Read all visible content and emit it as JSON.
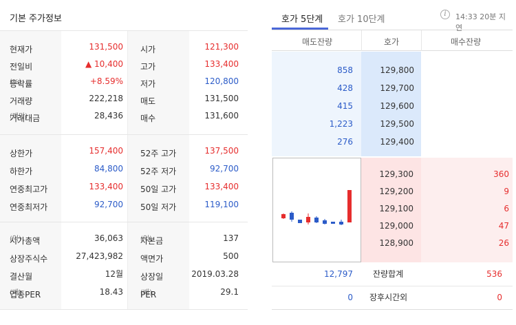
{
  "left": {
    "title": "기본 주가정보",
    "block1": [
      {
        "l1": "현재가",
        "u1": "",
        "v1": "131,500",
        "c1": "red",
        "l2": "시가",
        "u2": "",
        "v2": "121,300",
        "c2": "red"
      },
      {
        "l1": "전일비",
        "u1": "",
        "v1": "▲ 10,400",
        "c1": "red",
        "l2": "고가",
        "u2": "",
        "v2": "133,400",
        "c2": "red"
      },
      {
        "l1": "등락률",
        "u1": "(%)",
        "v1": "+8.59%",
        "c1": "red",
        "l2": "저가",
        "u2": "",
        "v2": "120,800",
        "c2": "blue"
      },
      {
        "l1": "거래량",
        "u1": "",
        "v1": "222,218",
        "c1": "",
        "l2": "매도",
        "u2": "",
        "v2": "131,500",
        "c2": ""
      },
      {
        "l1": "거래대금",
        "u1": "(백만)",
        "v1": "28,436",
        "c1": "",
        "l2": "매수",
        "u2": "",
        "v2": "131,600",
        "c2": ""
      }
    ],
    "block2": [
      {
        "l1": "상한가",
        "u1": "",
        "v1": "157,400",
        "c1": "red",
        "l2": "52주 고가",
        "u2": "",
        "v2": "137,500",
        "c2": "red"
      },
      {
        "l1": "하한가",
        "u1": "",
        "v1": "84,800",
        "c1": "blue",
        "l2": "52주 저가",
        "u2": "",
        "v2": "92,700",
        "c2": "blue"
      },
      {
        "l1": "연중최고가",
        "u1": "",
        "v1": "133,400",
        "c1": "red",
        "l2": "50일 고가",
        "u2": "",
        "v2": "133,400",
        "c2": "red"
      },
      {
        "l1": "연중최저가",
        "u1": "",
        "v1": "92,700",
        "c1": "blue",
        "l2": "50일 저가",
        "u2": "",
        "v2": "119,100",
        "c2": "blue"
      }
    ],
    "block3": [
      {
        "l1": "시가총액",
        "u1": "(억)",
        "v1": "36,063",
        "c1": "",
        "l2": "자본금",
        "u2": "(억)",
        "v2": "137",
        "c2": ""
      },
      {
        "l1": "상장주식수",
        "u1": "",
        "v1": "27,423,982",
        "c1": "",
        "l2": "액면가",
        "u2": "",
        "v2": "500",
        "c2": ""
      },
      {
        "l1": "결산월",
        "u1": "",
        "v1": "12월",
        "c1": "",
        "l2": "상장일",
        "u2": "",
        "v2": "2019.03.28",
        "c2": ""
      },
      {
        "l1": "업종PER",
        "u1": "(배)",
        "v1": "18.43",
        "c1": "",
        "l2": "PER",
        "u2": "(배)",
        "v2": "29.1",
        "c2": ""
      }
    ]
  },
  "right": {
    "tabs": [
      "호가 5단계",
      "호가 10단계"
    ],
    "info_icon_glyph": "i",
    "time_value": "14:33",
    "time_label": "20분 지연",
    "headers": {
      "ask": "매도잔량",
      "price": "호가",
      "bid": "매수잔량"
    },
    "asks": [
      {
        "vol": "858",
        "price": "129,800"
      },
      {
        "vol": "428",
        "price": "129,700"
      },
      {
        "vol": "415",
        "price": "129,600"
      },
      {
        "vol": "1,223",
        "price": "129,500"
      },
      {
        "vol": "276",
        "price": "129,400"
      }
    ],
    "bids": [
      {
        "price": "129,300",
        "vol": "360"
      },
      {
        "price": "129,200",
        "vol": "9"
      },
      {
        "price": "129,100",
        "vol": "6"
      },
      {
        "price": "129,000",
        "vol": "47"
      },
      {
        "price": "128,900",
        "vol": "26"
      }
    ],
    "summary": {
      "ask": "12,797",
      "label": "잔량합계",
      "bid": "536"
    },
    "after_hours": {
      "ask": "0",
      "label": "장후시간외",
      "bid": "0"
    },
    "colors": {
      "up": "#e62d2d",
      "down": "#2b5bc8",
      "tab_accent": "#4a67d8"
    }
  }
}
